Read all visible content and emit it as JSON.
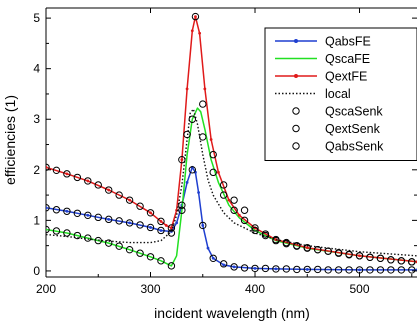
{
  "chart_data": {
    "type": "line",
    "xlabel": "incident wavelength (nm)",
    "ylabel": "efficiencies (1)",
    "xlim": [
      200,
      555
    ],
    "ylim": [
      -0.12,
      5.2
    ],
    "x_ticks": [
      200,
      300,
      400,
      500
    ],
    "y_ticks": [
      0,
      1,
      2,
      3,
      4,
      5
    ],
    "x_tick_labels": [
      "200",
      "300",
      "400",
      "500"
    ],
    "y_tick_labels": [
      "0",
      "1",
      "2",
      "3",
      "4",
      "5"
    ],
    "grid": false,
    "legend_position": "top-right",
    "legend": [
      "QabsFE",
      "QscaFE",
      "QextFE",
      "local",
      "QscaSenk",
      "QextSenk",
      "QabsSenk"
    ],
    "series": [
      {
        "name": "QabsFE",
        "color": "#1f3fd0",
        "style": "solid-dots",
        "x": [
          200,
          220,
          240,
          260,
          280,
          300,
          310,
          320,
          325,
          330,
          335,
          340,
          343,
          346,
          350,
          355,
          360,
          370,
          380,
          400,
          420,
          450,
          500,
          555
        ],
        "y": [
          1.25,
          1.18,
          1.1,
          1.02,
          0.95,
          0.86,
          0.8,
          0.78,
          0.95,
          1.3,
          1.75,
          2.05,
          1.95,
          1.55,
          0.9,
          0.45,
          0.25,
          0.12,
          0.08,
          0.05,
          0.04,
          0.03,
          0.02,
          0.02
        ]
      },
      {
        "name": "QscaFE",
        "color": "#22e022",
        "style": "solid",
        "x": [
          200,
          220,
          240,
          260,
          280,
          300,
          310,
          320,
          325,
          330,
          335,
          340,
          345,
          348,
          352,
          358,
          365,
          375,
          385,
          400,
          420,
          450,
          500,
          555
        ],
        "y": [
          0.82,
          0.75,
          0.65,
          0.55,
          0.42,
          0.28,
          0.2,
          0.1,
          0.3,
          1.2,
          2.3,
          3.0,
          3.22,
          3.15,
          2.8,
          2.2,
          1.75,
          1.3,
          1.05,
          0.8,
          0.6,
          0.45,
          0.3,
          0.18
        ]
      },
      {
        "name": "QextFE",
        "color": "#e01a1a",
        "style": "solid-dots",
        "x": [
          200,
          220,
          240,
          260,
          280,
          300,
          310,
          315,
          320,
          325,
          330,
          335,
          340,
          343,
          347,
          352,
          358,
          365,
          375,
          385,
          400,
          420,
          450,
          500,
          555
        ],
        "y": [
          2.05,
          1.92,
          1.78,
          1.6,
          1.4,
          1.15,
          0.98,
          0.9,
          0.85,
          1.2,
          2.2,
          3.6,
          4.75,
          5.03,
          4.7,
          3.6,
          2.6,
          1.95,
          1.4,
          1.1,
          0.85,
          0.62,
          0.46,
          0.3,
          0.18
        ]
      },
      {
        "name": "local",
        "color": "#111111",
        "style": "dotted",
        "x": [
          200,
          220,
          240,
          260,
          280,
          300,
          310,
          320,
          325,
          330,
          335,
          338,
          341,
          345,
          350,
          355,
          360,
          370,
          380,
          400,
          420,
          450,
          500,
          555
        ],
        "y": [
          0.72,
          0.68,
          0.63,
          0.59,
          0.56,
          0.56,
          0.6,
          0.78,
          1.1,
          1.7,
          2.6,
          3.12,
          3.2,
          2.9,
          2.3,
          1.8,
          1.5,
          1.15,
          0.95,
          0.75,
          0.62,
          0.5,
          0.38,
          0.3
        ]
      }
    ],
    "markers": [
      {
        "name": "QscaSenk",
        "x": [
          200,
          210,
          220,
          230,
          240,
          250,
          260,
          270,
          280,
          290,
          300,
          310,
          320,
          330,
          340,
          350,
          360,
          370,
          380,
          390,
          400,
          410,
          420,
          430,
          440,
          450,
          460,
          470,
          480,
          490,
          500,
          510,
          520,
          530,
          540,
          550
        ],
        "y": [
          0.82,
          0.79,
          0.75,
          0.7,
          0.65,
          0.6,
          0.55,
          0.49,
          0.42,
          0.35,
          0.28,
          0.2,
          0.1,
          1.2,
          3.0,
          2.65,
          1.95,
          1.5,
          1.2,
          1.0,
          0.8,
          0.7,
          0.6,
          0.54,
          0.49,
          0.45,
          0.42,
          0.39,
          0.35,
          0.32,
          0.3,
          0.27,
          0.25,
          0.22,
          0.2,
          0.18
        ]
      },
      {
        "name": "QextSenk",
        "x": [
          200,
          210,
          220,
          230,
          240,
          250,
          260,
          270,
          280,
          290,
          300,
          310,
          320,
          330,
          335,
          343,
          350,
          360,
          370,
          380,
          390,
          400,
          410,
          420,
          430,
          440,
          450,
          460,
          470,
          480,
          490,
          500,
          510,
          520,
          530,
          540,
          550
        ],
        "y": [
          2.05,
          1.99,
          1.92,
          1.85,
          1.78,
          1.7,
          1.6,
          1.5,
          1.4,
          1.28,
          1.15,
          0.98,
          0.85,
          2.2,
          2.7,
          5.03,
          3.3,
          2.3,
          1.7,
          1.4,
          1.2,
          0.85,
          0.73,
          0.62,
          0.56,
          0.5,
          0.46,
          0.42,
          0.39,
          0.36,
          0.33,
          0.3,
          0.27,
          0.25,
          0.22,
          0.2,
          0.18
        ]
      },
      {
        "name": "QabsSenk",
        "x": [
          200,
          210,
          220,
          230,
          240,
          250,
          260,
          270,
          280,
          290,
          300,
          310,
          320,
          330,
          340,
          350,
          360,
          370,
          380,
          390,
          400,
          410,
          420,
          430,
          440,
          450,
          460,
          470,
          480,
          490,
          500,
          510,
          520,
          530,
          540,
          550
        ],
        "y": [
          1.25,
          1.21,
          1.18,
          1.14,
          1.1,
          1.06,
          1.02,
          0.99,
          0.95,
          0.91,
          0.86,
          0.8,
          0.75,
          1.3,
          2.0,
          0.9,
          0.25,
          0.14,
          0.08,
          0.06,
          0.05,
          0.05,
          0.04,
          0.04,
          0.03,
          0.03,
          0.03,
          0.02,
          0.02,
          0.02,
          0.02,
          0.02,
          0.02,
          0.02,
          0.02,
          0.02
        ]
      }
    ]
  }
}
